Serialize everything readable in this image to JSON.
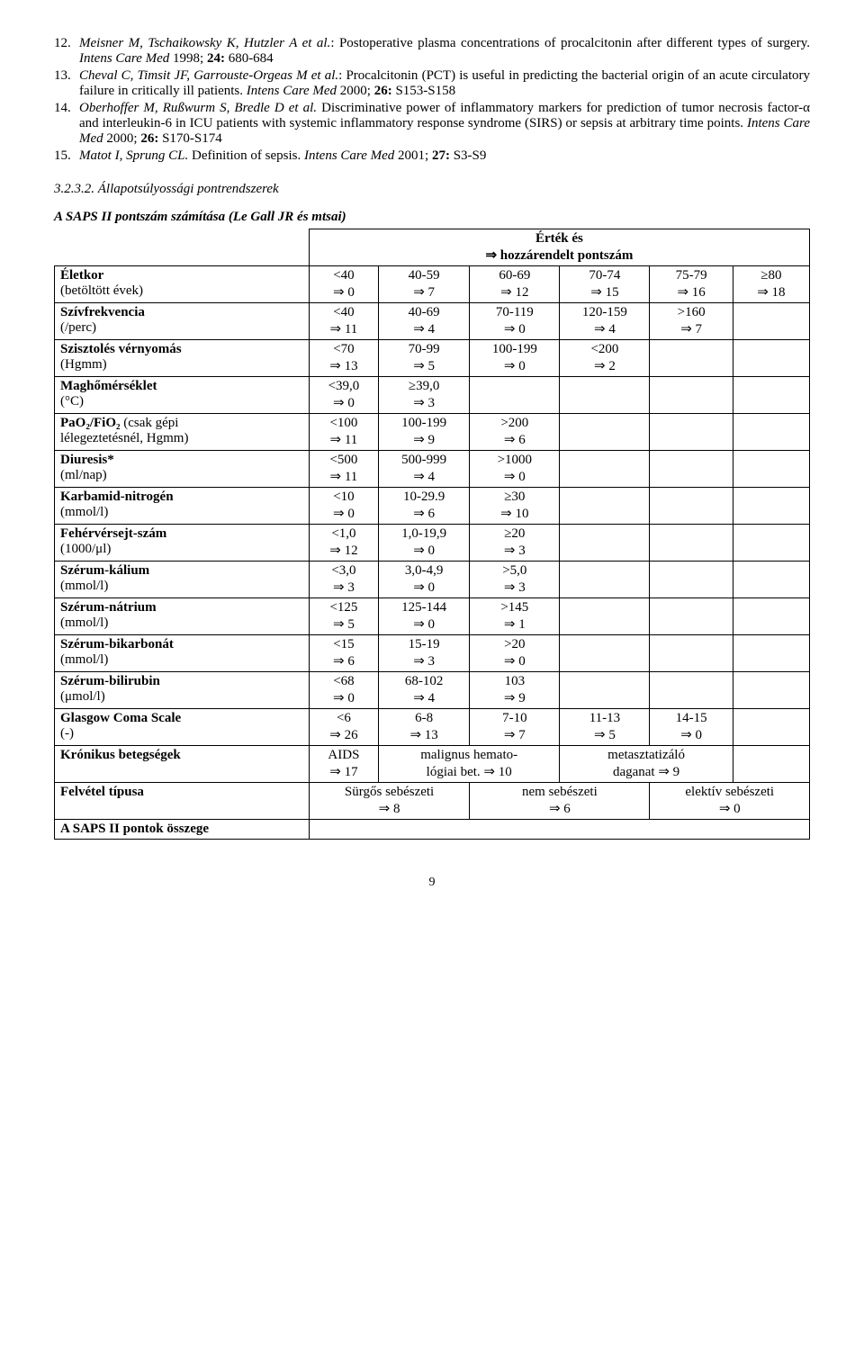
{
  "refs": [
    {
      "num": "12.",
      "authors": "Meisner M, Tschaikowsky K, Hutzler A et al.",
      "title": ": Postoperative plasma concentrations of procalcitonin after different types of surgery. ",
      "journal": "Intens Care Med",
      "year_vol": " 1998; ",
      "vol": "24:",
      "pages": " 680-684"
    },
    {
      "num": "13.",
      "authors": "Cheval C, Timsit JF, Garrouste-Orgeas M et al.",
      "title": ": Procalcitonin (PCT) is useful in predicting the bacterial origin of an acute circulatory failure in critically ill patients. ",
      "journal": "Intens Care Med",
      "year_vol": " 2000; ",
      "vol": "26:",
      "pages": " S153-S158"
    },
    {
      "num": "14.",
      "authors": "Oberhoffer M, Rußwurm S, Bredle D et al.",
      "title": " Discriminative power of inflammatory markers for prediction of tumor necrosis factor-α  and interleukin-6 in ICU patients with systemic inflammatory response syndrome (SIRS) or sepsis at arbitrary time points. ",
      "journal": "Intens Care Med",
      "year_vol": " 2000; ",
      "vol": "26:",
      "pages": " S170-S174"
    },
    {
      "num": "15.",
      "authors": "Matot I, Sprung CL.",
      "title": " Definition of sepsis. ",
      "journal": "Intens Care Med",
      "year_vol": " 2001; ",
      "vol": "27:",
      "pages": " S3-S9"
    }
  ],
  "section": "3.2.3.2. Állapotsúlyossági pontrendszerek",
  "table_title": "A SAPS II pontszám számítása (Le Gall JR és mtsai)",
  "header": {
    "l1": "Érték és",
    "l2": "⇒ hozzárendelt pontszám"
  },
  "rows": [
    {
      "label_b": "Életkor",
      "label_n": "(betöltött évek)",
      "cells": [
        "<40\n⇒ 0",
        "40-59\n⇒ 7",
        "60-69\n⇒ 12",
        "70-74\n⇒ 15",
        "75-79\n⇒ 16",
        "≥80\n⇒ 18"
      ]
    },
    {
      "label_b": "Szívfrekvencia",
      "label_n": "(/perc)",
      "cells": [
        "<40\n⇒ 11",
        "40-69\n⇒ 4",
        "70-119\n⇒ 0",
        "120-159\n⇒ 4",
        ">160\n⇒ 7",
        ""
      ]
    },
    {
      "label_b": "Szisztolés vérnyomás",
      "label_n": "(Hgmm)",
      "cells": [
        "<70\n⇒ 13",
        "70-99\n⇒ 5",
        "100-199\n⇒ 0",
        "<200\n⇒ 2",
        "",
        ""
      ]
    },
    {
      "label_b": "Maghőmérséklet",
      "label_n": "(°C)",
      "cells": [
        "<39,0\n⇒ 0",
        "≥39,0\n⇒ 3",
        "",
        "",
        "",
        ""
      ]
    },
    {
      "label_b": "PaO₂/FiO₂ ",
      "label_n2": "(csak gépi\nlélegeztetésnél, Hgmm)",
      "cells": [
        "<100\n⇒ 11",
        "100-199\n⇒ 9",
        ">200\n⇒ 6",
        "",
        "",
        ""
      ]
    },
    {
      "label_b": "Diuresis*",
      "label_n": "(ml/nap)",
      "cells": [
        "<500\n⇒ 11",
        "500-999\n⇒ 4",
        ">1000\n⇒ 0",
        "",
        "",
        ""
      ]
    },
    {
      "label_b": "Karbamid-nitrogén",
      "label_n": "(mmol/l)",
      "cells": [
        "<10\n⇒ 0",
        "10-29.9\n⇒ 6",
        "≥30\n⇒ 10",
        "",
        "",
        ""
      ]
    },
    {
      "label_b": "Fehérvérsejt-szám",
      "label_n": "(1000/μl)",
      "cells": [
        "<1,0\n⇒ 12",
        "1,0-19,9\n⇒ 0",
        "≥20\n⇒ 3",
        "",
        "",
        ""
      ]
    },
    {
      "label_b": "Szérum-kálium",
      "label_n": "(mmol/l)",
      "cells": [
        "<3,0\n⇒ 3",
        "3,0-4,9\n⇒ 0",
        ">5,0\n⇒ 3",
        "",
        "",
        ""
      ]
    },
    {
      "label_b": "Szérum-nátrium",
      "label_n": "(mmol/l)",
      "cells": [
        "<125\n⇒ 5",
        "125-144\n⇒ 0",
        ">145\n⇒ 1",
        "",
        "",
        ""
      ]
    },
    {
      "label_b": "Szérum-bikarbonát",
      "label_n": "(mmol/l)",
      "cells": [
        "<15\n⇒ 6",
        "15-19\n⇒ 3",
        ">20\n⇒ 0",
        "",
        "",
        ""
      ]
    },
    {
      "label_b": "Szérum-bilirubin",
      "label_n": "(μmol/l)",
      "cells": [
        "<68\n⇒ 0",
        "68-102\n⇒ 4",
        "103\n⇒ 9",
        "",
        "",
        ""
      ]
    },
    {
      "label_b": "Glasgow Coma Scale",
      "label_n": "(-)",
      "cells": [
        "<6\n⇒ 26",
        "6-8\n⇒ 13",
        "7-10\n⇒ 7",
        "11-13\n⇒ 5",
        "14-15\n⇒ 0",
        ""
      ]
    }
  ],
  "kronikus": {
    "label": "Krónikus betegségek",
    "c1": "AIDS\n⇒ 17",
    "c2": "malignus hemato-\nlógiai bet. ⇒ 10",
    "c3": "metasztatizáló\ndaganat ⇒ 9"
  },
  "felvetel": {
    "label": "Felvétel típusa",
    "c1": "Sürgős sebészeti\n⇒ 8",
    "c2": "nem sebészeti\n⇒ 6",
    "c3": "elektív sebészeti\n⇒ 0"
  },
  "sum_label": "A SAPS II pontok összege",
  "pagenum": "9"
}
